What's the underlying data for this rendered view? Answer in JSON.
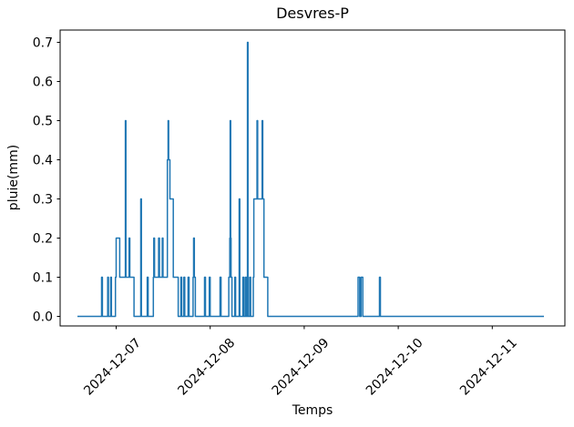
{
  "chart_data": {
    "type": "line",
    "title": "Desvres-P",
    "xlabel": "Temps",
    "ylabel": "pluie(mm)",
    "grid": false,
    "legend": null,
    "background": "#ffffff",
    "axis_color": "#000000",
    "series_color": "#1f77b4",
    "x_unit": "days relative to 2024-12-07 00:00",
    "x_ticks": [
      {
        "label": "2024-12-07",
        "day": 0
      },
      {
        "label": "2024-12-08",
        "day": 1
      },
      {
        "label": "2024-12-09",
        "day": 2
      },
      {
        "label": "2024-12-10",
        "day": 3
      },
      {
        "label": "2024-12-11",
        "day": 4
      }
    ],
    "x_tick_rotation_deg": 45,
    "y_ticks": [
      {
        "label": "0.0",
        "value": 0.0
      },
      {
        "label": "0.1",
        "value": 0.1
      },
      {
        "label": "0.2",
        "value": 0.2
      },
      {
        "label": "0.3",
        "value": 0.3
      },
      {
        "label": "0.4",
        "value": 0.4
      },
      {
        "label": "0.5",
        "value": 0.5
      },
      {
        "label": "0.6",
        "value": 0.6
      },
      {
        "label": "0.7",
        "value": 0.7
      }
    ],
    "ylim": [
      -0.025,
      0.73
    ],
    "xlim": [
      -0.596,
      4.772
    ],
    "series": [
      {
        "name": "pluie",
        "points": [
          [
            -0.412,
            0
          ],
          [
            -0.155,
            0
          ],
          [
            -0.155,
            0.1
          ],
          [
            -0.146,
            0.1
          ],
          [
            -0.146,
            0
          ],
          [
            -0.09,
            0
          ],
          [
            -0.09,
            0.1
          ],
          [
            -0.082,
            0.1
          ],
          [
            -0.082,
            0
          ],
          [
            -0.058,
            0
          ],
          [
            -0.058,
            0.1
          ],
          [
            -0.05,
            0.1
          ],
          [
            -0.05,
            0
          ],
          [
            -0.008,
            0
          ],
          [
            -0.008,
            0.1
          ],
          [
            0.0,
            0.1
          ],
          [
            0.0,
            0.2
          ],
          [
            0.038,
            0.2
          ],
          [
            0.038,
            0.1
          ],
          [
            0.098,
            0.1
          ],
          [
            0.098,
            0.5
          ],
          [
            0.104,
            0.5
          ],
          [
            0.104,
            0.1
          ],
          [
            0.138,
            0.1
          ],
          [
            0.138,
            0.2
          ],
          [
            0.145,
            0.2
          ],
          [
            0.145,
            0.1
          ],
          [
            0.19,
            0.1
          ],
          [
            0.19,
            0
          ],
          [
            0.262,
            0
          ],
          [
            0.262,
            0.3
          ],
          [
            0.268,
            0.3
          ],
          [
            0.268,
            0
          ],
          [
            0.33,
            0
          ],
          [
            0.33,
            0.1
          ],
          [
            0.34,
            0.1
          ],
          [
            0.34,
            0
          ],
          [
            0.395,
            0
          ],
          [
            0.395,
            0.1
          ],
          [
            0.4,
            0.1
          ],
          [
            0.4,
            0.2
          ],
          [
            0.408,
            0.2
          ],
          [
            0.408,
            0.1
          ],
          [
            0.452,
            0.1
          ],
          [
            0.452,
            0.2
          ],
          [
            0.46,
            0.2
          ],
          [
            0.46,
            0.1
          ],
          [
            0.49,
            0.1
          ],
          [
            0.49,
            0.2
          ],
          [
            0.498,
            0.2
          ],
          [
            0.498,
            0.1
          ],
          [
            0.545,
            0.1
          ],
          [
            0.545,
            0.4
          ],
          [
            0.552,
            0.4
          ],
          [
            0.552,
            0.5
          ],
          [
            0.558,
            0.5
          ],
          [
            0.558,
            0.4
          ],
          [
            0.572,
            0.4
          ],
          [
            0.572,
            0.3
          ],
          [
            0.608,
            0.3
          ],
          [
            0.608,
            0.1
          ],
          [
            0.66,
            0.1
          ],
          [
            0.66,
            0
          ],
          [
            0.688,
            0
          ],
          [
            0.688,
            0.1
          ],
          [
            0.698,
            0.1
          ],
          [
            0.698,
            0
          ],
          [
            0.72,
            0
          ],
          [
            0.72,
            0.1
          ],
          [
            0.73,
            0.1
          ],
          [
            0.73,
            0
          ],
          [
            0.765,
            0
          ],
          [
            0.765,
            0.1
          ],
          [
            0.775,
            0.1
          ],
          [
            0.775,
            0
          ],
          [
            0.818,
            0
          ],
          [
            0.818,
            0.1
          ],
          [
            0.824,
            0.1
          ],
          [
            0.824,
            0.2
          ],
          [
            0.831,
            0.2
          ],
          [
            0.831,
            0.1
          ],
          [
            0.842,
            0.1
          ],
          [
            0.842,
            0
          ],
          [
            0.94,
            0
          ],
          [
            0.94,
            0.1
          ],
          [
            0.95,
            0.1
          ],
          [
            0.95,
            0
          ],
          [
            0.99,
            0
          ],
          [
            0.99,
            0.1
          ],
          [
            1.0,
            0.1
          ],
          [
            1.0,
            0
          ],
          [
            1.105,
            0
          ],
          [
            1.105,
            0.1
          ],
          [
            1.115,
            0.1
          ],
          [
            1.115,
            0
          ],
          [
            1.198,
            0
          ],
          [
            1.198,
            0.1
          ],
          [
            1.208,
            0.1
          ],
          [
            1.208,
            0.2
          ],
          [
            1.212,
            0.2
          ],
          [
            1.212,
            0.5
          ],
          [
            1.218,
            0.5
          ],
          [
            1.218,
            0.2
          ],
          [
            1.222,
            0.2
          ],
          [
            1.222,
            0.1
          ],
          [
            1.232,
            0.1
          ],
          [
            1.232,
            0
          ],
          [
            1.262,
            0
          ],
          [
            1.262,
            0.1
          ],
          [
            1.27,
            0.1
          ],
          [
            1.27,
            0
          ],
          [
            1.308,
            0
          ],
          [
            1.308,
            0.3
          ],
          [
            1.315,
            0.3
          ],
          [
            1.315,
            0
          ],
          [
            1.348,
            0
          ],
          [
            1.348,
            0.1
          ],
          [
            1.358,
            0.1
          ],
          [
            1.358,
            0
          ],
          [
            1.374,
            0
          ],
          [
            1.374,
            0.1
          ],
          [
            1.384,
            0.1
          ],
          [
            1.384,
            0
          ],
          [
            1.396,
            0
          ],
          [
            1.396,
            0.7
          ],
          [
            1.402,
            0.7
          ],
          [
            1.402,
            0
          ],
          [
            1.42,
            0
          ],
          [
            1.42,
            0.1
          ],
          [
            1.43,
            0.1
          ],
          [
            1.43,
            0
          ],
          [
            1.458,
            0
          ],
          [
            1.458,
            0.1
          ],
          [
            1.464,
            0.1
          ],
          [
            1.464,
            0.3
          ],
          [
            1.498,
            0.3
          ],
          [
            1.498,
            0.5
          ],
          [
            1.505,
            0.5
          ],
          [
            1.505,
            0.3
          ],
          [
            1.552,
            0.3
          ],
          [
            1.552,
            0.5
          ],
          [
            1.559,
            0.5
          ],
          [
            1.559,
            0.3
          ],
          [
            1.572,
            0.3
          ],
          [
            1.572,
            0.1
          ],
          [
            1.612,
            0.1
          ],
          [
            1.612,
            0
          ],
          [
            2.573,
            0
          ],
          [
            2.573,
            0.1
          ],
          [
            2.59,
            0.1
          ],
          [
            2.59,
            0
          ],
          [
            2.605,
            0
          ],
          [
            2.605,
            0.1
          ],
          [
            2.623,
            0.1
          ],
          [
            2.623,
            0
          ],
          [
            2.8,
            0
          ],
          [
            2.8,
            0.1
          ],
          [
            2.81,
            0.1
          ],
          [
            2.81,
            0
          ],
          [
            4.549,
            0
          ]
        ]
      }
    ]
  }
}
